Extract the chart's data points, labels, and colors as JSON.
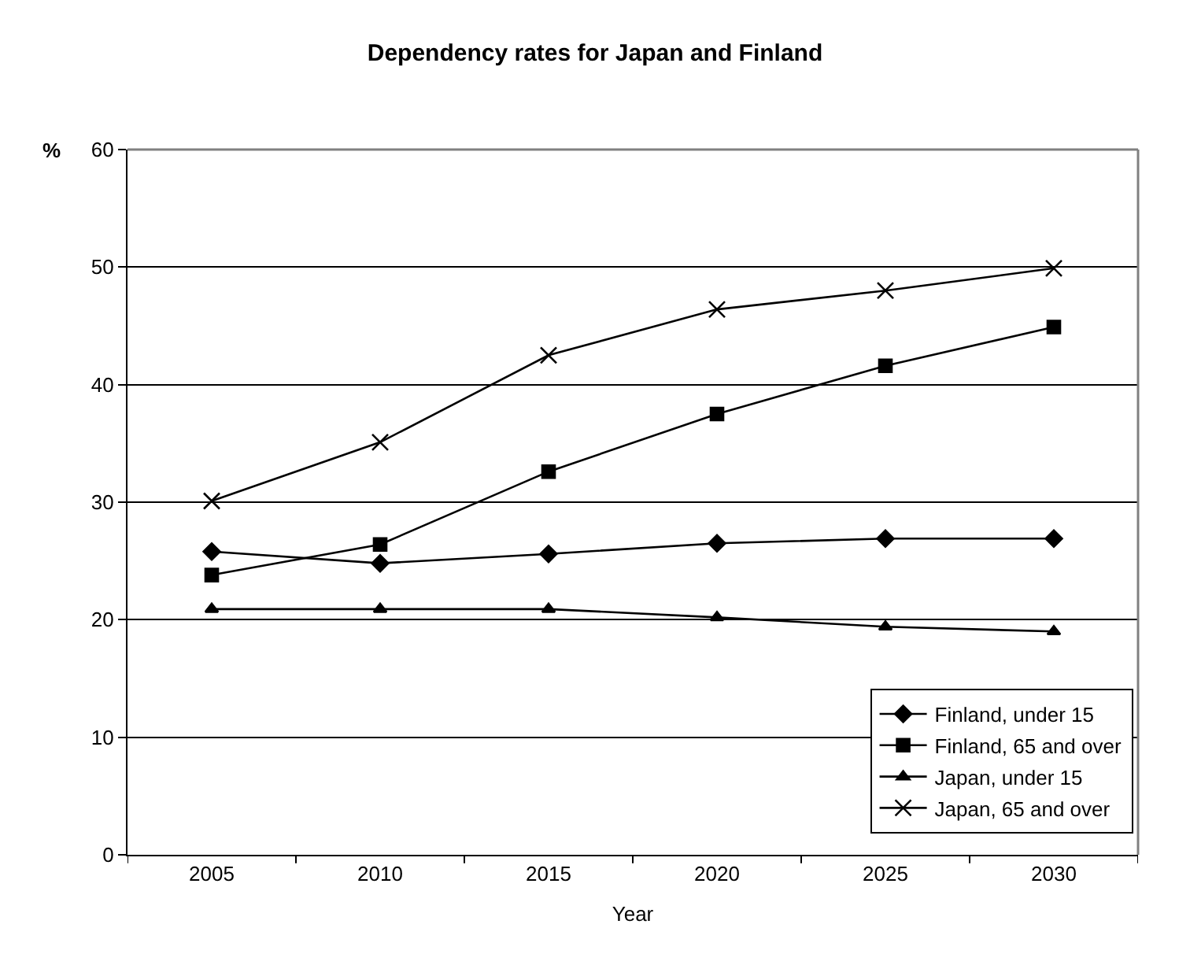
{
  "chart_data": {
    "type": "line",
    "title": "Dependency rates for Japan and Finland",
    "xlabel": "Year",
    "ylabel": "%",
    "categories": [
      "2005",
      "2010",
      "2015",
      "2020",
      "2025",
      "2030"
    ],
    "series": [
      {
        "name": "Finland, under 15",
        "color": "#000000",
        "marker": "diamond",
        "values": [
          25.8,
          24.8,
          25.6,
          26.5,
          26.9,
          26.9
        ]
      },
      {
        "name": "Finland, 65 and over",
        "color": "#000000",
        "marker": "square",
        "values": [
          23.8,
          26.4,
          32.6,
          37.5,
          41.6,
          44.9
        ]
      },
      {
        "name": "Japan, under 15",
        "color": "#000000",
        "marker": "triangle",
        "values": [
          20.9,
          20.9,
          20.9,
          20.2,
          19.4,
          19.0
        ]
      },
      {
        "name": "Japan, 65 and over",
        "color": "#000000",
        "marker": "cross",
        "values": [
          30.1,
          35.1,
          42.5,
          46.4,
          48.0,
          49.9
        ]
      }
    ],
    "ylim": [
      0,
      60
    ],
    "yticks": [
      0,
      10,
      20,
      30,
      40,
      50,
      60
    ],
    "grid": "y",
    "legend": "bottom right",
    "line_style": "solid"
  }
}
